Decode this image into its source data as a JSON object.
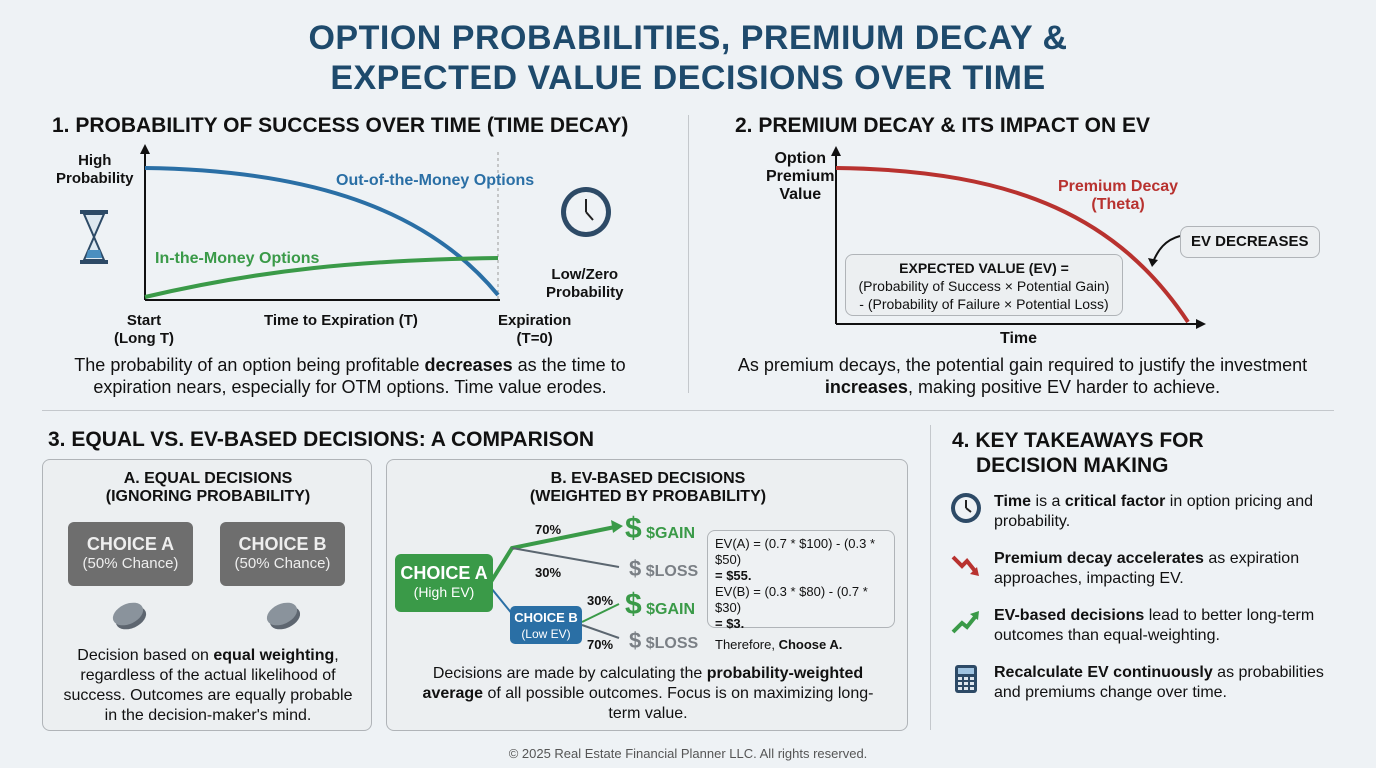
{
  "title": [
    "OPTION PROBABILITIES, PREMIUM DECAY &",
    "EXPECTED VALUE DECISIONS OVER TIME"
  ],
  "s1": {
    "heading": "1. PROBABILITY OF SUCCESS OVER TIME (TIME DECAY)",
    "y_high": [
      "High",
      "Probability"
    ],
    "y_low": [
      "Low/Zero",
      "Probability"
    ],
    "otm": "Out-of-the-Money Options",
    "itm": "In-the-Money Options",
    "x_start": [
      "Start",
      "(Long T)"
    ],
    "x_mid": "Time to Expiration (T)",
    "x_end": [
      "Expiration",
      "(T=0)"
    ],
    "cap_a": "The probability of an option being profitable ",
    "cap_b": "decreases",
    "cap_c": " as the time to expiration nears, especially for OTM options. Time value erodes.",
    "colors": {
      "otm": "#2a6fa5",
      "itm": "#3a9a48"
    }
  },
  "s2": {
    "heading": "2. PREMIUM DECAY & ITS IMPACT ON EV",
    "y_label": [
      "Option",
      "Premium",
      "Value"
    ],
    "curve": [
      "Premium Decay",
      "(Theta)"
    ],
    "x_label": "Time",
    "ev_badge": "EV DECREASES",
    "formula": [
      "EXPECTED VALUE (EV) =",
      "(Probability of Success × Potential Gain)",
      "- (Probability of Failure × Potential Loss)"
    ],
    "cap_a": "As premium decays, the potential gain required to justify the investment ",
    "cap_b": "increases",
    "cap_c": ", making positive EV harder to achieve.",
    "colors": {
      "curve": "#b8322f"
    }
  },
  "s3": {
    "heading": "3. EQUAL VS. EV-BASED DECISIONS: A COMPARISON",
    "a": {
      "title": [
        "A. EQUAL DECISIONS",
        "(IGNORING PROBABILITY)"
      ],
      "choice_a": [
        "CHOICE A",
        "(50% Chance)"
      ],
      "choice_b": [
        "CHOICE B",
        "(50% Chance)"
      ],
      "cap_a": "Decision based on ",
      "cap_b": "equal weighting",
      "cap_c": ", regardless of the actual likelihood of success. Outcomes are equally probable in the decision-maker's mind."
    },
    "b": {
      "title": [
        "B. EV-BASED DECISIONS",
        "(WEIGHTED BY PROBABILITY)"
      ],
      "choice_a": [
        "CHOICE A",
        "(High EV)"
      ],
      "choice_b": [
        "CHOICE B",
        "(Low EV)"
      ],
      "p_a_gain": "70%",
      "p_a_loss": "30%",
      "p_b_gain": "30%",
      "p_b_loss": "70%",
      "gain": "$GAIN",
      "loss": "$LOSS",
      "dollar": "$",
      "calc": [
        "EV(A) = (0.7 * $100) - (0.3 * $50)",
        "= $55.",
        "EV(B) = (0.3 * $80) - (0.7 * $30)",
        "= $3."
      ],
      "therefore": "Therefore, ",
      "choose": "Choose A.",
      "cap_a": "Decisions are made by calculating the ",
      "cap_b": "probability-weighted average",
      "cap_c": " of all possible outcomes. Focus is on maximizing long-term value."
    }
  },
  "s4": {
    "heading": [
      "4. KEY TAKEAWAYS FOR",
      "DECISION MAKING"
    ],
    "items": [
      {
        "icon": "clock-icon",
        "b": "Time",
        "t1": " is a ",
        "b2": "critical factor",
        "t2": " in option pricing and probability."
      },
      {
        "icon": "down-trend-icon",
        "b": "Premium decay accelerates",
        "t1": " as expiration approaches, impacting EV.",
        "b2": "",
        "t2": ""
      },
      {
        "icon": "up-trend-icon",
        "b": "EV-based decisions",
        "t1": " lead to better long-term outcomes than equal-weighting.",
        "b2": "",
        "t2": ""
      },
      {
        "icon": "calculator-icon",
        "b": "Recalculate EV continuously",
        "t1": " as probabilities and premiums change over time.",
        "b2": "",
        "t2": ""
      }
    ]
  },
  "footer": "© 2025 Real Estate Financial Planner LLC. All rights reserved."
}
